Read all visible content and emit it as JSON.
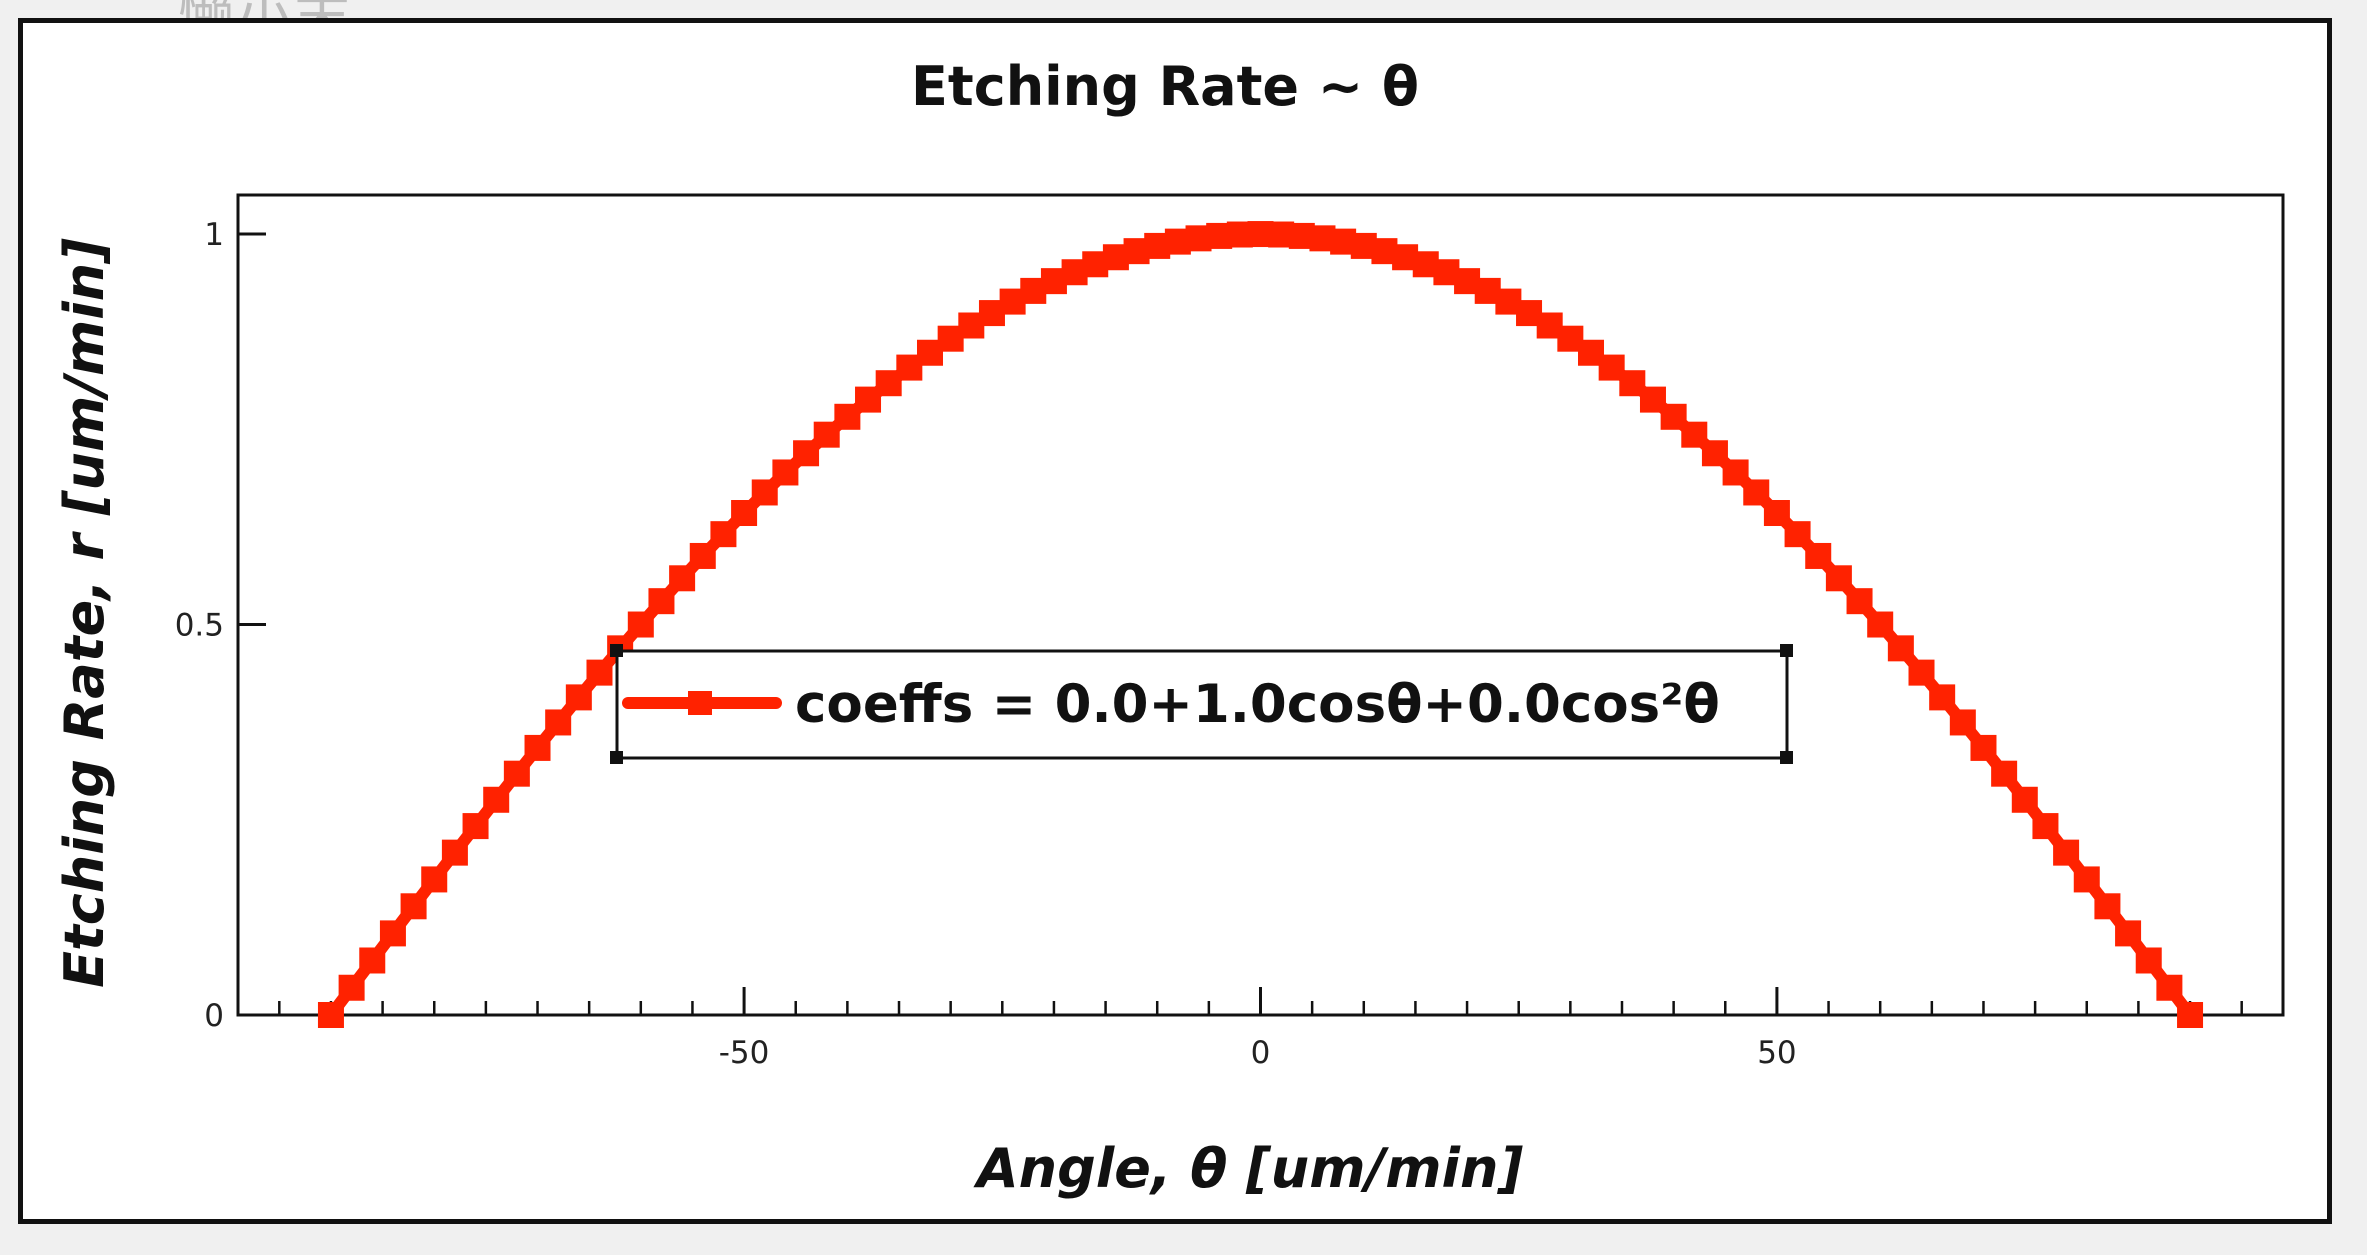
{
  "watermark": "懒小末",
  "colors": {
    "series": "#ff2200",
    "axis": "#111111",
    "background": "#ffffff"
  },
  "chart_data": {
    "type": "line",
    "title": "Etching Rate ~ θ",
    "xlabel": "Angle, θ [um/min]",
    "ylabel": "Etching Rate, r [um/min]",
    "xlim": [
      -99,
      99
    ],
    "ylim": [
      0,
      1.05
    ],
    "xticks": [
      -50,
      0,
      50
    ],
    "yticks": [
      0,
      0.5,
      1
    ],
    "xtick_labels": [
      "-50",
      "0",
      "50"
    ],
    "ytick_labels": [
      "0",
      "0.5",
      "1"
    ],
    "legend": {
      "position": "center",
      "label": "coeffs = 0.0+1.0cosθ+0.0cos²θ"
    },
    "series": [
      {
        "label": "coeffs = 0.0+1.0cosθ+0.0cos²θ",
        "x": [
          -90,
          -88,
          -86,
          -84,
          -82,
          -80,
          -78,
          -76,
          -74,
          -72,
          -70,
          -68,
          -66,
          -64,
          -62,
          -60,
          -58,
          -56,
          -54,
          -52,
          -50,
          -48,
          -46,
          -44,
          -42,
          -40,
          -38,
          -36,
          -34,
          -32,
          -30,
          -28,
          -26,
          -24,
          -22,
          -20,
          -18,
          -16,
          -14,
          -12,
          -10,
          -8,
          -6,
          -4,
          -2,
          0,
          2,
          4,
          6,
          8,
          10,
          12,
          14,
          16,
          18,
          20,
          22,
          24,
          26,
          28,
          30,
          32,
          34,
          36,
          38,
          40,
          42,
          44,
          46,
          48,
          50,
          52,
          54,
          56,
          58,
          60,
          62,
          64,
          66,
          68,
          70,
          72,
          74,
          76,
          78,
          80,
          82,
          84,
          86,
          88,
          90
        ],
        "y": [
          0,
          0.0349,
          0.0698,
          0.1045,
          0.1392,
          0.1736,
          0.2079,
          0.2419,
          0.2756,
          0.309,
          0.342,
          0.3746,
          0.4067,
          0.4384,
          0.4695,
          0.5,
          0.5299,
          0.5592,
          0.5878,
          0.6157,
          0.6428,
          0.6691,
          0.6947,
          0.7193,
          0.7431,
          0.766,
          0.788,
          0.809,
          0.829,
          0.848,
          0.866,
          0.8829,
          0.8988,
          0.9135,
          0.9272,
          0.9397,
          0.9511,
          0.9613,
          0.9703,
          0.9781,
          0.9848,
          0.9903,
          0.9945,
          0.9976,
          0.9994,
          1,
          0.9994,
          0.9976,
          0.9945,
          0.9903,
          0.9848,
          0.9781,
          0.9703,
          0.9613,
          0.9511,
          0.9397,
          0.9272,
          0.9135,
          0.8988,
          0.8829,
          0.866,
          0.848,
          0.829,
          0.809,
          0.788,
          0.766,
          0.7431,
          0.7193,
          0.6947,
          0.6691,
          0.6428,
          0.6157,
          0.5878,
          0.5592,
          0.5299,
          0.5,
          0.4695,
          0.4384,
          0.4067,
          0.3746,
          0.342,
          0.309,
          0.2756,
          0.2419,
          0.2079,
          0.1736,
          0.1392,
          0.1045,
          0.0698,
          0.0349,
          0
        ]
      }
    ]
  }
}
